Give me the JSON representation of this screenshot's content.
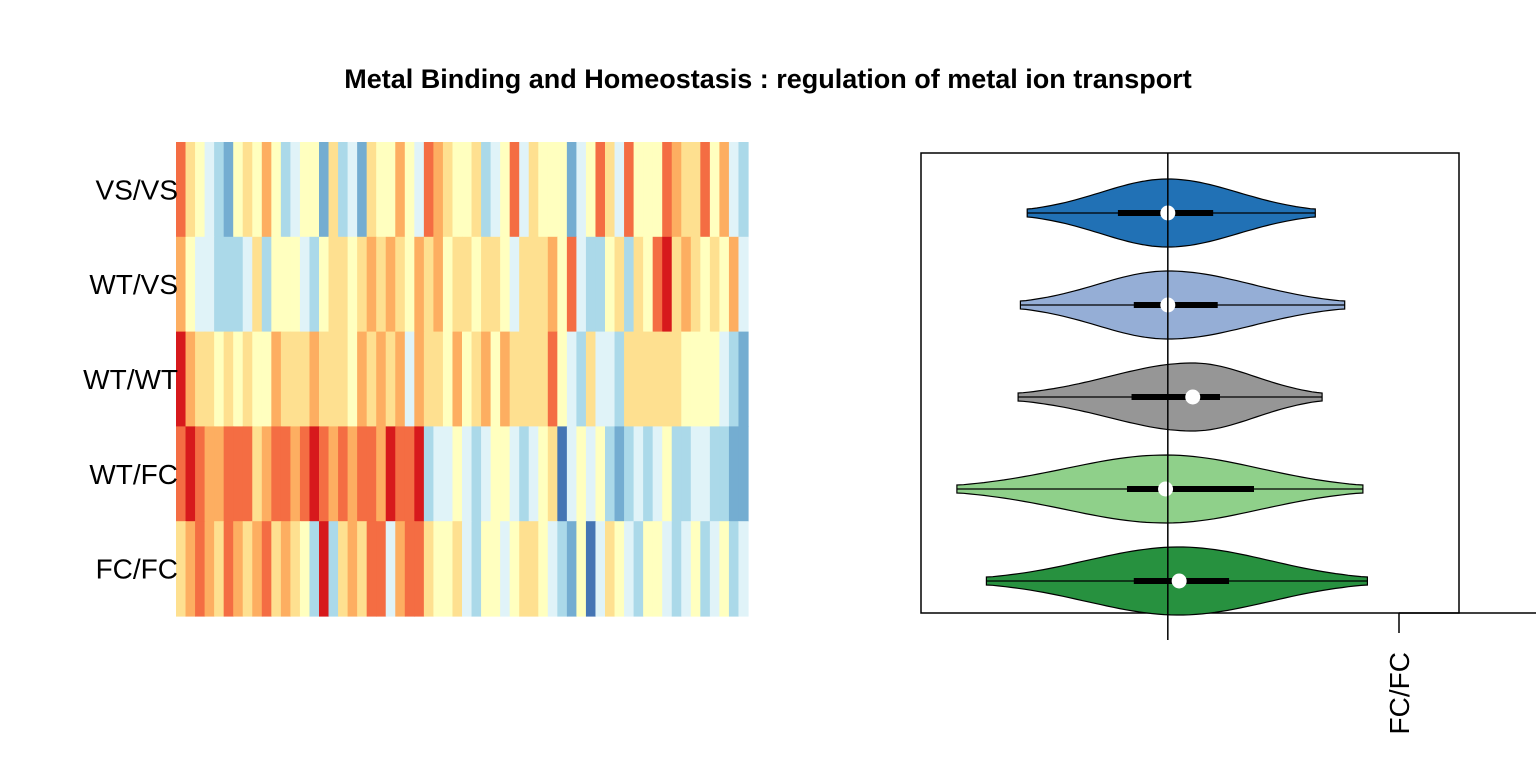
{
  "title": "Metal Binding and Homeostasis : regulation of metal ion transport",
  "chart_data": [
    {
      "type": "heatmap",
      "rows": [
        "VS/VS",
        "WT/VS",
        "WT/WT",
        "WT/FC",
        "FC/FC"
      ],
      "n_columns": 60,
      "palette": [
        "#d7191c",
        "#f46d43",
        "#fdae61",
        "#fee090",
        "#ffffbf",
        "#e0f3f8",
        "#abd9e9",
        "#74add1",
        "#4575b4"
      ],
      "cells": [
        [
          1,
          3,
          4,
          5,
          6,
          7,
          4,
          3,
          4,
          2,
          4,
          6,
          5,
          4,
          4,
          7,
          3,
          6,
          5,
          7,
          3,
          4,
          4,
          2,
          4,
          5,
          1,
          2,
          3,
          4,
          4,
          3,
          6,
          5,
          4,
          1,
          5,
          3,
          4,
          4,
          4,
          7,
          5,
          4,
          1,
          3,
          5,
          1,
          4,
          4,
          4,
          1,
          2,
          3,
          3,
          1,
          4,
          2,
          5,
          6
        ],
        [
          2,
          4,
          5,
          5,
          6,
          6,
          6,
          5,
          3,
          6,
          4,
          4,
          4,
          5,
          6,
          4,
          3,
          3,
          4,
          3,
          2,
          3,
          2,
          3,
          4,
          2,
          3,
          2,
          4,
          3,
          3,
          4,
          3,
          3,
          4,
          5,
          3,
          3,
          3,
          2,
          4,
          1,
          5,
          6,
          6,
          4,
          3,
          6,
          3,
          4,
          1,
          0,
          3,
          2,
          3,
          4,
          3,
          4,
          2,
          5
        ],
        [
          0,
          2,
          3,
          3,
          4,
          3,
          4,
          3,
          4,
          4,
          2,
          3,
          3,
          3,
          2,
          3,
          3,
          3,
          4,
          2,
          3,
          2,
          3,
          2,
          5,
          2,
          3,
          3,
          4,
          2,
          4,
          3,
          2,
          4,
          2,
          3,
          3,
          3,
          3,
          1,
          4,
          5,
          6,
          3,
          5,
          5,
          6,
          3,
          3,
          3,
          3,
          3,
          3,
          4,
          4,
          4,
          4,
          5,
          6,
          7
        ],
        [
          1,
          0,
          1,
          2,
          2,
          1,
          1,
          1,
          3,
          2,
          1,
          1,
          2,
          1,
          0,
          1,
          2,
          1,
          2,
          1,
          1,
          2,
          0,
          1,
          1,
          0,
          6,
          5,
          5,
          4,
          5,
          6,
          5,
          4,
          4,
          5,
          6,
          5,
          4,
          3,
          8,
          5,
          4,
          5,
          4,
          6,
          7,
          6,
          5,
          6,
          5,
          4,
          6,
          6,
          5,
          5,
          6,
          6,
          7,
          7
        ],
        [
          3,
          2,
          1,
          2,
          3,
          1,
          2,
          3,
          2,
          1,
          3,
          2,
          3,
          4,
          6,
          0,
          6,
          3,
          2,
          3,
          1,
          1,
          5,
          2,
          1,
          1,
          3,
          4,
          4,
          3,
          5,
          6,
          4,
          4,
          5,
          4,
          3,
          3,
          4,
          5,
          6,
          7,
          4,
          8,
          5,
          3,
          4,
          5,
          6,
          4,
          4,
          5,
          6,
          5,
          4,
          6,
          5,
          4,
          6,
          5
        ]
      ]
    },
    {
      "type": "violin",
      "categories": [
        "VS/VS",
        "WT/VS",
        "WT/WT",
        "WT/FC",
        "FC/FC"
      ],
      "colors": [
        "#2171b5",
        "#95aed6",
        "#969696",
        "#8fd08a",
        "#27913f"
      ],
      "x_ticks": [
        "FC/FC"
      ],
      "ref_line": 0.0,
      "xlim": [
        -1.0,
        1.2
      ],
      "violins": [
        {
          "min": -0.62,
          "q1": -0.22,
          "median": 0.0,
          "q3": 0.2,
          "max": 0.65,
          "width": 0.58
        },
        {
          "min": -0.65,
          "q1": -0.15,
          "median": 0.0,
          "q3": 0.22,
          "max": 0.78,
          "width": 0.58
        },
        {
          "min": -0.66,
          "q1": -0.16,
          "median": 0.11,
          "q3": 0.23,
          "max": 0.68,
          "width": 0.58
        },
        {
          "min": -0.93,
          "q1": -0.18,
          "median": -0.01,
          "q3": 0.38,
          "max": 0.86,
          "width": 0.58
        },
        {
          "min": -0.8,
          "q1": -0.15,
          "median": 0.05,
          "q3": 0.27,
          "max": 0.88,
          "width": 0.58
        }
      ]
    }
  ]
}
